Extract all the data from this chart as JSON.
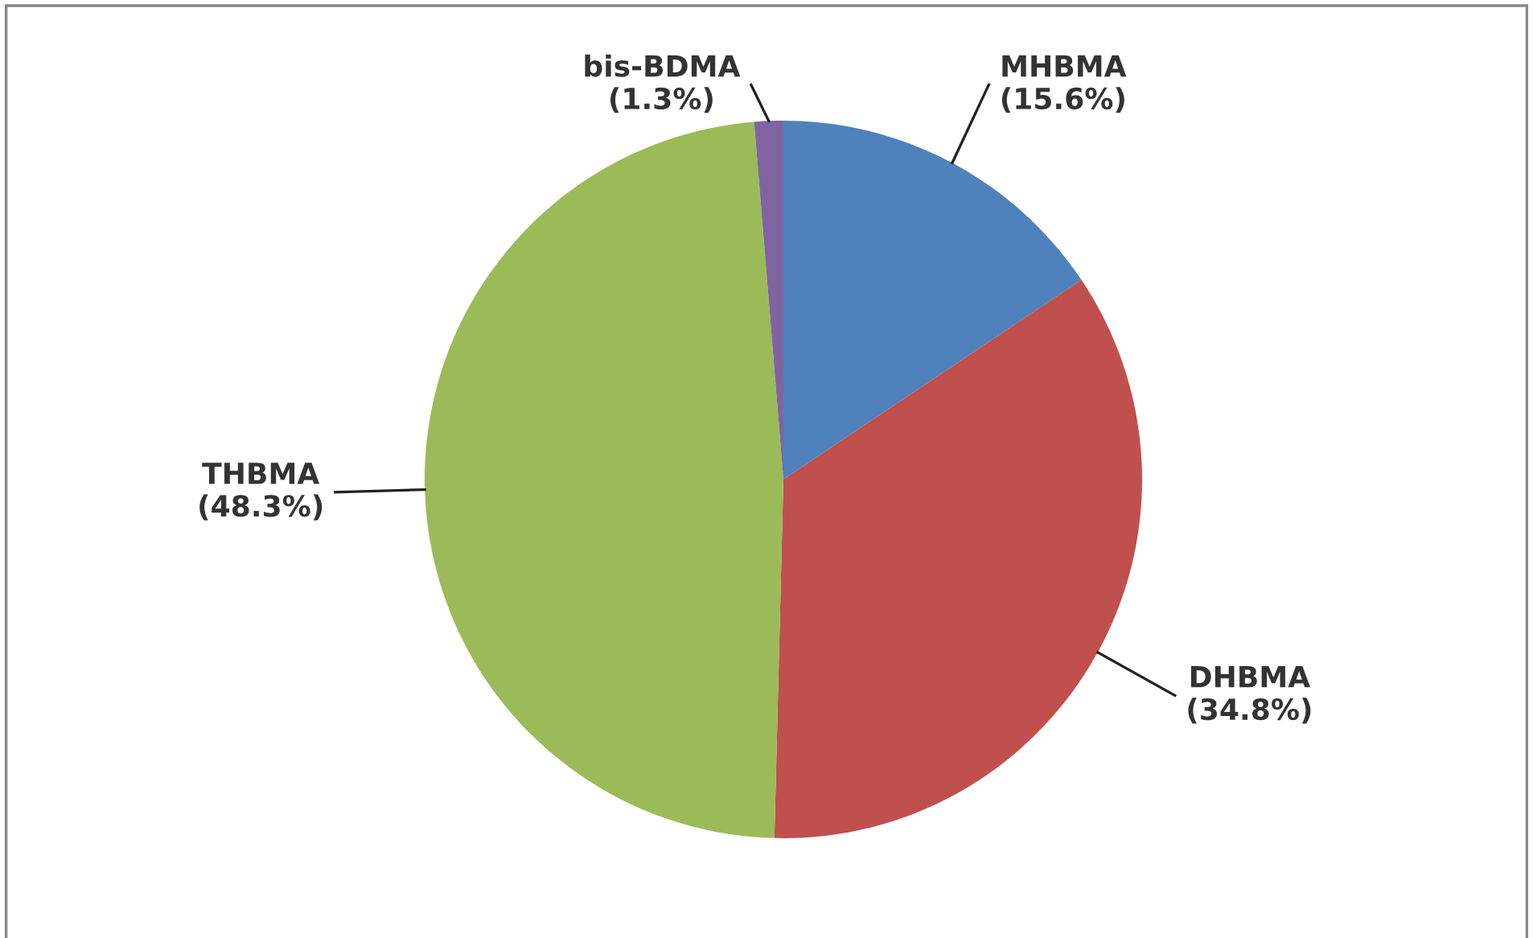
{
  "chart_data": {
    "type": "pie",
    "categories": [
      "MHBMA",
      "DHBMA",
      "THBMA",
      "bis-BDMA"
    ],
    "values": [
      15.6,
      34.8,
      48.3,
      1.3
    ],
    "value_labels": [
      "(15.6%)",
      "(34.8%)",
      "(48.3%)",
      "(1.3%)"
    ],
    "colors": [
      "#4f81bd",
      "#c0504d",
      "#9bbb59",
      "#8064a2"
    ]
  }
}
